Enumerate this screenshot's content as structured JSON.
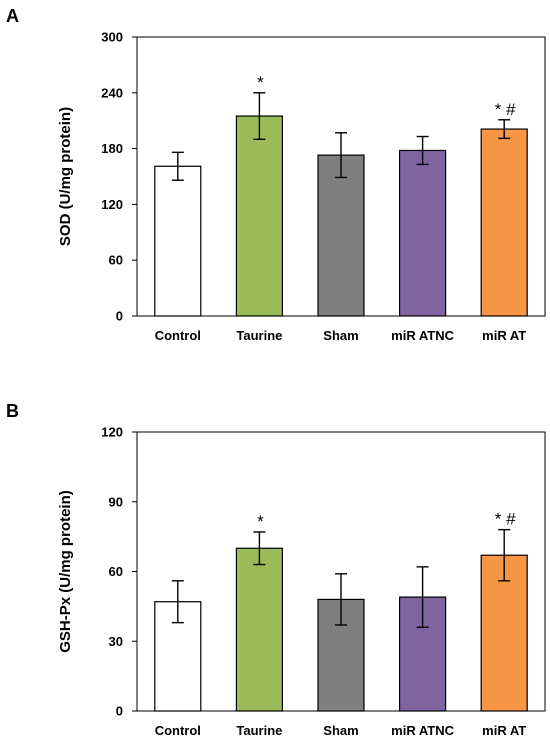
{
  "chart_data": [
    {
      "type": "bar",
      "panel": "A",
      "title": "",
      "xlabel": "",
      "ylabel": "SOD (U/mg protein)",
      "ylim": [
        0,
        300
      ],
      "yticks": [
        0,
        60,
        120,
        180,
        240,
        300
      ],
      "categories": [
        "Control",
        "Taurine",
        "Sham",
        "miR ATNC",
        "miR AT"
      ],
      "values": [
        161,
        215,
        173,
        178,
        201
      ],
      "errors": [
        15,
        25,
        24,
        15,
        10
      ],
      "colors": [
        "#ffffff",
        "#9bbb59",
        "#7f7f7f",
        "#8064a2",
        "#f79646"
      ],
      "annotations": [
        "",
        "*",
        "",
        "",
        "* #"
      ],
      "grid": false
    },
    {
      "type": "bar",
      "panel": "B",
      "title": "",
      "xlabel": "",
      "ylabel": "GSH-Px (U/mg protein)",
      "ylim": [
        0,
        120
      ],
      "yticks": [
        0,
        30,
        60,
        90,
        120
      ],
      "categories": [
        "Control",
        "Taurine",
        "Sham",
        "miR ATNC",
        "miR AT"
      ],
      "values": [
        47,
        70,
        48,
        49,
        67
      ],
      "errors": [
        9,
        7,
        11,
        13,
        11
      ],
      "colors": [
        "#ffffff",
        "#9bbb59",
        "#7f7f7f",
        "#8064a2",
        "#f79646"
      ],
      "annotations": [
        "",
        "*",
        "",
        "",
        "* #"
      ],
      "grid": false
    }
  ]
}
